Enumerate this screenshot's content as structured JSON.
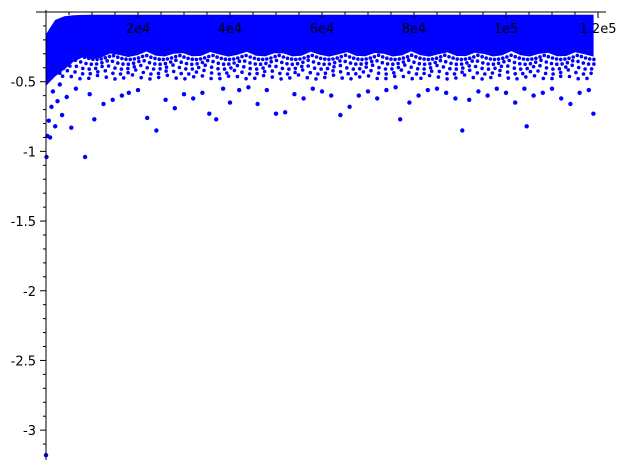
{
  "chart_data": {
    "type": "scatter",
    "title": "",
    "xlabel": "",
    "ylabel": "",
    "xlim": [
      0,
      120000
    ],
    "ylim": [
      -3.2,
      0
    ],
    "grid": false,
    "point_color": "#0000ff",
    "x_ticks": [
      {
        "value": 20000,
        "label": "2e4"
      },
      {
        "value": 40000,
        "label": "4e4"
      },
      {
        "value": 60000,
        "label": "6e4"
      },
      {
        "value": 80000,
        "label": "8e4"
      },
      {
        "value": 100000,
        "label": "1e5"
      },
      {
        "value": 120000,
        "label": "1.2e5"
      }
    ],
    "y_ticks": [
      {
        "value": -0.5,
        "label": "-0.5"
      },
      {
        "value": -1,
        "label": "-1"
      },
      {
        "value": -1.5,
        "label": "-1.5"
      },
      {
        "value": -2,
        "label": "-2"
      },
      {
        "value": -2.5,
        "label": "-2.5"
      },
      {
        "value": -3,
        "label": "-3"
      }
    ],
    "series": [
      {
        "points": [
          [
            0,
            -3.18
          ],
          [
            100,
            -1.04
          ],
          [
            300,
            -0.89
          ],
          [
            600,
            -0.78
          ],
          [
            900,
            -0.9
          ],
          [
            1200,
            -0.68
          ],
          [
            1500,
            -0.57
          ],
          [
            2000,
            -0.82
          ],
          [
            2500,
            -0.64
          ],
          [
            3000,
            -0.52
          ],
          [
            3500,
            -0.74
          ],
          [
            4500,
            -0.61
          ],
          [
            5500,
            -0.83
          ],
          [
            6500,
            -0.55
          ],
          [
            8500,
            -1.04
          ],
          [
            9500,
            -0.59
          ],
          [
            10500,
            -0.77
          ],
          [
            12500,
            -0.66
          ],
          [
            14500,
            -0.63
          ],
          [
            16500,
            -0.6
          ],
          [
            18000,
            -0.58
          ],
          [
            20000,
            -0.56
          ],
          [
            22000,
            -0.76
          ],
          [
            24000,
            -0.85
          ],
          [
            26000,
            -0.63
          ],
          [
            28000,
            -0.69
          ],
          [
            30000,
            -0.59
          ],
          [
            32000,
            -0.62
          ],
          [
            34000,
            -0.58
          ],
          [
            35500,
            -0.73
          ],
          [
            37000,
            -0.77
          ],
          [
            38500,
            -0.55
          ],
          [
            40000,
            -0.65
          ],
          [
            42000,
            -0.56
          ],
          [
            44000,
            -0.54
          ],
          [
            46000,
            -0.66
          ],
          [
            48000,
            -0.56
          ],
          [
            50000,
            -0.73
          ],
          [
            52000,
            -0.72
          ],
          [
            54000,
            -0.59
          ],
          [
            56000,
            -0.62
          ],
          [
            58000,
            -0.55
          ],
          [
            60000,
            -0.57
          ],
          [
            62000,
            -0.6
          ],
          [
            64000,
            -0.74
          ],
          [
            66000,
            -0.68
          ],
          [
            68000,
            -0.6
          ],
          [
            70000,
            -0.57
          ],
          [
            72000,
            -0.62
          ],
          [
            74000,
            -0.56
          ],
          [
            76000,
            -0.54
          ],
          [
            77000,
            -0.77
          ],
          [
            79000,
            -0.65
          ],
          [
            81000,
            -0.6
          ],
          [
            83000,
            -0.56
          ],
          [
            85000,
            -0.55
          ],
          [
            87000,
            -0.58
          ],
          [
            89000,
            -0.62
          ],
          [
            90500,
            -0.85
          ],
          [
            92000,
            -0.63
          ],
          [
            94000,
            -0.57
          ],
          [
            96000,
            -0.6
          ],
          [
            98000,
            -0.55
          ],
          [
            100000,
            -0.58
          ],
          [
            102000,
            -0.65
          ],
          [
            104000,
            -0.55
          ],
          [
            104500,
            -0.82
          ],
          [
            106000,
            -0.6
          ],
          [
            108000,
            -0.58
          ],
          [
            110000,
            -0.55
          ],
          [
            112000,
            -0.62
          ],
          [
            114000,
            -0.66
          ],
          [
            116000,
            -0.58
          ],
          [
            118000,
            -0.56
          ],
          [
            119000,
            -0.73
          ]
        ]
      }
    ]
  }
}
